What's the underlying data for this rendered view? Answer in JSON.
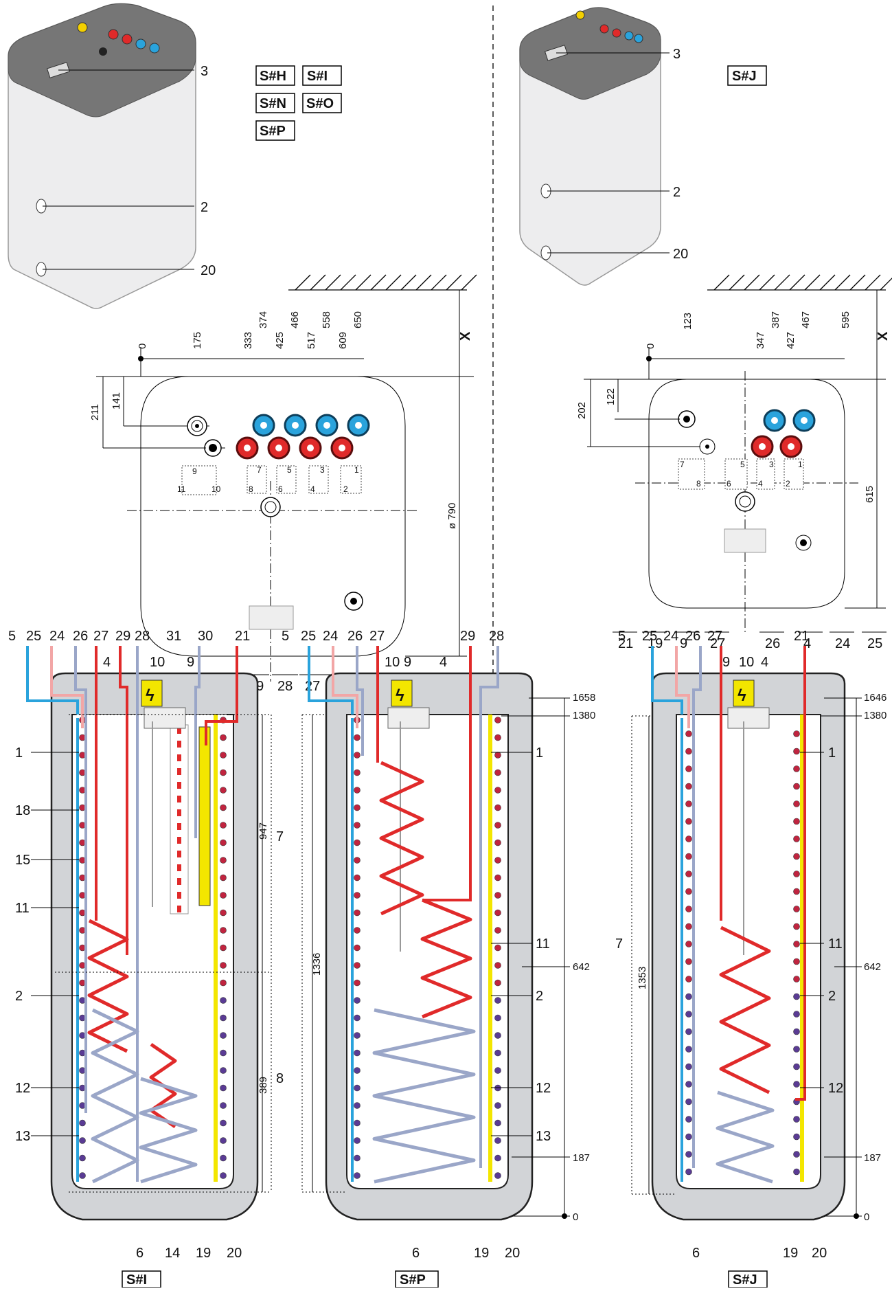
{
  "variant_badges": {
    "top_left": [
      "S#H",
      "S#I",
      "S#N",
      "S#O",
      "S#P"
    ],
    "top_right": "S#J",
    "bottom": [
      "S#I",
      "S#P",
      "S#J"
    ]
  },
  "top_left_callouts": [
    "3",
    "2",
    "20"
  ],
  "top_right_callouts": [
    "3",
    "2",
    "20"
  ],
  "left_plan": {
    "dimensions": [
      "0",
      "175",
      "333",
      "374",
      "425",
      "466",
      "517",
      "558",
      "609",
      "650"
    ],
    "offsets": [
      "211",
      "141"
    ],
    "diameter": "ø 790",
    "wall_gap": "X",
    "bottom_labels": [
      "21",
      "19",
      "31",
      "30",
      "9",
      "29",
      "28",
      "27",
      "4",
      "26",
      "24",
      "25"
    ],
    "icon_numbers": [
      "9",
      "11",
      "10",
      "7",
      "8",
      "5",
      "6",
      "3",
      "4",
      "1",
      "2"
    ]
  },
  "right_plan": {
    "dimensions": [
      "0",
      "123",
      "347",
      "387",
      "427",
      "467",
      "595"
    ],
    "offsets": [
      "202",
      "122"
    ],
    "depth": "615",
    "wall_gap": "X",
    "bottom_labels": [
      "21",
      "19",
      "9",
      "27",
      "26",
      "4",
      "24",
      "25"
    ],
    "icon_numbers": [
      "7",
      "8",
      "5",
      "6",
      "3",
      "4",
      "1",
      "2"
    ]
  },
  "section_a": {
    "top_labels": [
      "5",
      "25",
      "24",
      "26",
      "27",
      "29",
      "28",
      "31",
      "30",
      "21"
    ],
    "inner_labels": [
      "4",
      "10",
      "9"
    ],
    "left_labels": [
      "1",
      "18",
      "15",
      "11",
      "2",
      "12",
      "13"
    ],
    "bottom_labels": [
      "6",
      "14",
      "19",
      "20"
    ],
    "dims": [
      "947",
      "389"
    ],
    "zone_labels": [
      "7",
      "8"
    ]
  },
  "section_b": {
    "top_labels": [
      "5",
      "25",
      "24",
      "26",
      "27",
      "29",
      "28"
    ],
    "inner_labels": [
      "10",
      "9",
      "4"
    ],
    "right_labels": [
      "1",
      "11",
      "2",
      "12",
      "13"
    ],
    "bottom_labels": [
      "6",
      "19",
      "20"
    ],
    "dim": "1336",
    "heights": [
      "1658",
      "1380",
      "642",
      "187",
      "0"
    ]
  },
  "section_c": {
    "top_labels": [
      "5",
      "25",
      "24",
      "26",
      "27",
      "21"
    ],
    "inner_labels": [
      "9",
      "10",
      "4"
    ],
    "right_labels": [
      "1",
      "11",
      "2",
      "12"
    ],
    "left_labels": [
      "7"
    ],
    "bottom_labels": [
      "6",
      "19",
      "20"
    ],
    "dim": "1353",
    "heights": [
      "1646",
      "1380",
      "642",
      "187",
      "0"
    ]
  },
  "colors": {
    "cold": "#2aa3dc",
    "hot": "#e02a2a",
    "warm_light": "#f2a6a6",
    "return": "#9aa6c8",
    "heater": "#f3e600",
    "shell": "#d2d4d7",
    "top_cap": "#777777"
  }
}
